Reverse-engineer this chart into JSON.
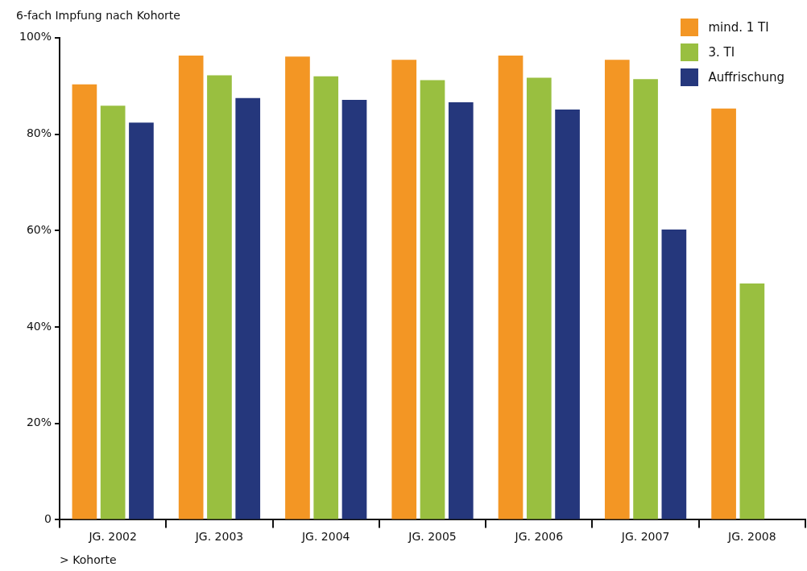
{
  "chart_data": {
    "type": "bar",
    "title": "6-fach Impfung nach Kohorte",
    "xlabel": "> Kohorte",
    "categories": [
      "JG. 2002",
      "JG. 2003",
      "JG. 2004",
      "JG. 2005",
      "JG. 2006",
      "JG. 2007",
      "JG. 2008"
    ],
    "series": [
      {
        "name": "mind. 1 TI",
        "color": "#f39624",
        "values": [
          90.3,
          96.3,
          96.1,
          95.4,
          96.3,
          95.4,
          85.3
        ]
      },
      {
        "name": "3. TI",
        "color": "#99bf40",
        "values": [
          85.9,
          92.2,
          92.0,
          91.2,
          91.7,
          91.4,
          49.0
        ]
      },
      {
        "name": "Auffrischung",
        "color": "#25377c",
        "values": [
          82.4,
          87.5,
          87.1,
          86.6,
          85.1,
          60.2,
          null
        ]
      }
    ],
    "ylim": [
      0,
      100
    ],
    "yticks": [
      {
        "value": 0,
        "label": "0"
      },
      {
        "value": 20,
        "label": "20%"
      },
      {
        "value": 40,
        "label": "40%"
      },
      {
        "value": 60,
        "label": "60%"
      },
      {
        "value": 80,
        "label": "80%"
      },
      {
        "value": 100,
        "label": "100%"
      }
    ],
    "grid": false,
    "legend": "top right"
  }
}
